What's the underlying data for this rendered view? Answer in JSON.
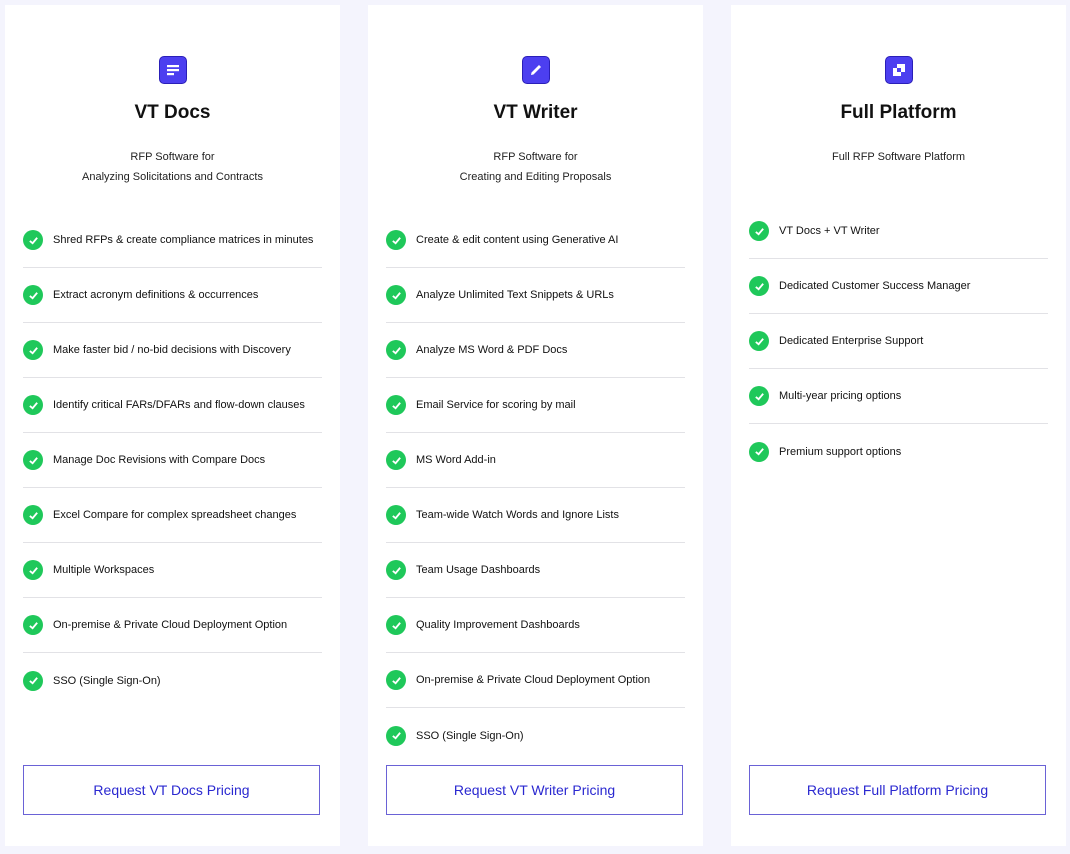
{
  "colors": {
    "accent": "#4c3ff0",
    "check": "#1fc85a",
    "button_text": "#2a28d0",
    "background": "#f4f4fd"
  },
  "cards": [
    {
      "icon": "document-lines-icon",
      "title": "VT Docs",
      "subtitle": [
        "RFP Software for",
        "Analyzing Solicitations and Contracts"
      ],
      "features": [
        "Shred RFPs & create compliance matrices in minutes",
        "Extract acronym definitions & occurrences",
        "Make faster bid / no-bid decisions with Discovery",
        "Identify critical FARs/DFARs and flow-down clauses",
        "Manage Doc Revisions with Compare Docs",
        "Excel Compare for complex spreadsheet changes",
        "Multiple Workspaces",
        "On-premise & Private Cloud Deployment Option",
        "SSO (Single Sign-On)"
      ],
      "button": "Request VT Docs Pricing"
    },
    {
      "icon": "pencil-icon",
      "title": "VT Writer",
      "subtitle": [
        "RFP Software for",
        "Creating and Editing Proposals"
      ],
      "features": [
        "Create & edit content using Generative AI",
        "Analyze Unlimited Text Snippets & URLs",
        "Analyze MS Word & PDF Docs",
        "Email Service for scoring by mail",
        "MS Word Add-in",
        "Team-wide Watch Words and Ignore Lists",
        "Team Usage Dashboards",
        "Quality Improvement Dashboards",
        "On-premise & Private Cloud Deployment Option",
        "SSO (Single Sign-On)"
      ],
      "button": "Request VT Writer Pricing"
    },
    {
      "icon": "platform-blocks-icon",
      "title": "Full Platform",
      "subtitle": [
        "Full RFP Software Platform"
      ],
      "features": [
        "VT Docs + VT Writer",
        "Dedicated Customer Success Manager",
        "Dedicated Enterprise Support",
        "Multi-year pricing options",
        "Premium support options"
      ],
      "button": "Request Full Platform Pricing"
    }
  ]
}
